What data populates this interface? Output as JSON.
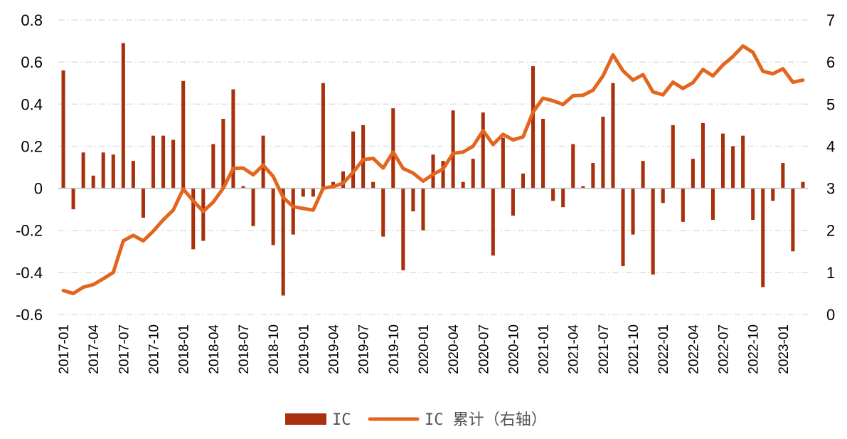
{
  "chart_data": {
    "type": "bar+line",
    "colors": {
      "bar": "#A8300C",
      "line": "#E2661E",
      "grid": "#D9D9D9"
    },
    "x_tick_labels": [
      "2017-01",
      "2017-04",
      "2017-07",
      "2017-10",
      "2018-01",
      "2018-04",
      "2018-07",
      "2018-10",
      "2019-01",
      "2019-04",
      "2019-07",
      "2019-10",
      "2020-01",
      "2020-04",
      "2020-07",
      "2020-10",
      "2021-01",
      "2021-04",
      "2021-07",
      "2021-10",
      "2022-01",
      "2022-04",
      "2022-07",
      "2022-10",
      "2023-01"
    ],
    "left_axis": {
      "ylim": [
        -0.6,
        0.8
      ],
      "ticks": [
        "0.8",
        "0.6",
        "0.4",
        "0.2",
        "0",
        "-0.2",
        "-0.4",
        "-0.6"
      ]
    },
    "right_axis": {
      "ylim": [
        0,
        7
      ],
      "ticks": [
        "7",
        "6",
        "5",
        "4",
        "3",
        "2",
        "1",
        "0"
      ]
    },
    "series": [
      {
        "name": "IC",
        "type": "bar",
        "axis": "left",
        "values": [
          0.56,
          -0.1,
          0.17,
          0.06,
          0.17,
          0.16,
          0.69,
          0.13,
          -0.14,
          0.25,
          0.25,
          0.23,
          0.51,
          -0.29,
          -0.25,
          0.21,
          0.33,
          0.47,
          0.01,
          -0.18,
          0.25,
          -0.27,
          -0.51,
          -0.22,
          -0.04,
          -0.04,
          0.5,
          0.03,
          0.08,
          0.27,
          0.3,
          0.03,
          -0.23,
          0.38,
          -0.39,
          -0.11,
          -0.2,
          0.16,
          0.13,
          0.37,
          0.03,
          0.14,
          0.36,
          -0.32,
          0.24,
          -0.13,
          0.07,
          0.58,
          0.33,
          -0.06,
          -0.09,
          0.21,
          0.01,
          0.12,
          0.34,
          0.5,
          -0.37,
          -0.22,
          0.13,
          -0.41,
          -0.07,
          0.3,
          -0.16,
          0.14,
          0.31,
          -0.15,
          0.26,
          0.2,
          0.25,
          -0.15,
          -0.47,
          -0.06,
          0.12,
          -0.3,
          0.03
        ]
      },
      {
        "name": "IC 累计（右轴）",
        "type": "line",
        "axis": "right",
        "values": [
          0.57,
          0.5,
          0.65,
          0.71,
          0.85,
          1.0,
          1.75,
          1.88,
          1.75,
          1.98,
          2.25,
          2.48,
          2.98,
          2.7,
          2.45,
          2.67,
          3.0,
          3.47,
          3.48,
          3.32,
          3.55,
          3.28,
          2.78,
          2.56,
          2.52,
          2.48,
          3.0,
          3.04,
          3.12,
          3.38,
          3.68,
          3.71,
          3.48,
          3.86,
          3.47,
          3.36,
          3.17,
          3.33,
          3.46,
          3.83,
          3.86,
          4.0,
          4.37,
          4.04,
          4.28,
          4.15,
          4.22,
          4.81,
          5.14,
          5.08,
          4.99,
          5.2,
          5.21,
          5.33,
          5.67,
          6.17,
          5.79,
          5.57,
          5.7,
          5.29,
          5.22,
          5.52,
          5.37,
          5.51,
          5.82,
          5.67,
          5.93,
          6.13,
          6.38,
          6.23,
          5.78,
          5.72,
          5.84,
          5.52,
          5.57
        ]
      }
    ],
    "legend": {
      "position": "bottom-center",
      "entries": [
        "IC",
        "IC 累计（右轴）"
      ]
    }
  }
}
